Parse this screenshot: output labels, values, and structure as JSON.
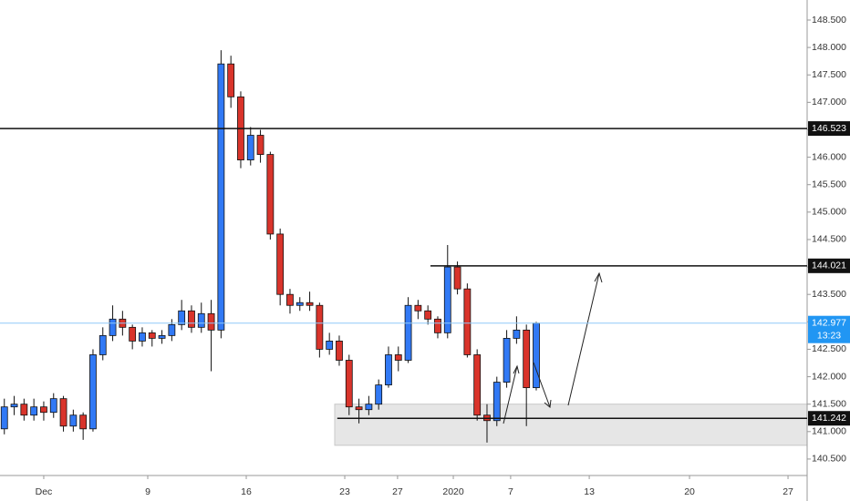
{
  "chart_data": {
    "type": "candlestick",
    "up_color": "#3179f5",
    "down_color": "#d9342b",
    "x": [
      -2,
      -1.5,
      -1,
      -0.5,
      0,
      0.5,
      1,
      1.5,
      2,
      2.5,
      3,
      3.5,
      4,
      4.5,
      5,
      5.5,
      6,
      6.5,
      7,
      7.5,
      8,
      8.5,
      9,
      9.5,
      10,
      10.5,
      11,
      11.5,
      12,
      12.5,
      13,
      13.5,
      14,
      14.5,
      15,
      15.5,
      16,
      16.5,
      17,
      17.5,
      18,
      18.5,
      19,
      19.5,
      20,
      20.5,
      21,
      21.5,
      22,
      22.5,
      23,
      23.5,
      24,
      24.5,
      25
    ],
    "open": [
      141.05,
      141.45,
      141.5,
      141.3,
      141.45,
      141.35,
      141.6,
      141.1,
      141.3,
      141.05,
      142.4,
      142.75,
      143.05,
      142.9,
      142.65,
      142.8,
      142.7,
      142.75,
      142.95,
      143.2,
      142.9,
      143.15,
      142.85,
      147.7,
      147.1,
      145.95,
      146.4,
      146.05,
      144.6,
      143.5,
      143.3,
      143.35,
      143.3,
      142.5,
      142.65,
      142.3,
      141.45,
      141.4,
      141.5,
      141.85,
      142.4,
      142.3,
      143.3,
      143.2,
      143.05,
      142.8,
      144.0,
      143.6,
      142.4,
      141.3,
      141.2,
      141.9,
      142.7,
      142.85,
      141.8
    ],
    "high": [
      141.6,
      141.65,
      141.6,
      141.6,
      141.55,
      141.7,
      141.65,
      141.4,
      141.35,
      142.5,
      142.9,
      143.3,
      143.2,
      142.95,
      142.9,
      142.85,
      142.85,
      143.05,
      143.4,
      143.3,
      143.35,
      143.4,
      147.95,
      147.85,
      147.2,
      146.55,
      146.5,
      146.1,
      144.7,
      143.6,
      143.45,
      143.55,
      143.35,
      142.8,
      142.75,
      142.4,
      141.6,
      141.65,
      141.95,
      142.55,
      142.55,
      143.45,
      143.4,
      143.3,
      143.1,
      144.4,
      144.1,
      143.7,
      142.5,
      141.5,
      142.0,
      142.85,
      143.1,
      142.95,
      143.0
    ],
    "low": [
      140.95,
      141.3,
      141.2,
      141.2,
      141.2,
      141.25,
      141.0,
      141.0,
      140.85,
      141.0,
      142.3,
      142.65,
      142.75,
      142.5,
      142.55,
      142.55,
      142.6,
      142.65,
      142.85,
      142.8,
      142.8,
      142.1,
      142.7,
      146.9,
      145.8,
      145.85,
      145.9,
      144.5,
      143.3,
      143.15,
      143.2,
      143.2,
      142.35,
      142.4,
      142.2,
      141.3,
      141.15,
      141.3,
      141.4,
      141.8,
      142.1,
      142.25,
      143.05,
      142.95,
      142.7,
      142.7,
      143.5,
      142.35,
      141.2,
      140.8,
      141.1,
      141.8,
      142.6,
      141.1,
      141.75
    ],
    "close": [
      141.45,
      141.5,
      141.3,
      141.45,
      141.35,
      141.6,
      141.1,
      141.3,
      141.05,
      142.4,
      142.75,
      143.05,
      142.9,
      142.65,
      142.8,
      142.7,
      142.75,
      142.95,
      143.2,
      142.9,
      143.15,
      142.85,
      147.7,
      147.1,
      145.95,
      146.4,
      146.05,
      144.6,
      143.5,
      143.3,
      143.35,
      143.3,
      142.5,
      142.65,
      142.3,
      141.45,
      141.4,
      141.5,
      141.85,
      142.4,
      142.3,
      143.3,
      143.2,
      143.05,
      142.8,
      144.0,
      143.6,
      142.4,
      141.3,
      141.2,
      141.9,
      142.7,
      142.85,
      141.8,
      142.977
    ],
    "xlim": [
      -2.22,
      38.75
    ],
    "ylim": [
      140.2,
      148.865
    ],
    "xticks": [
      {
        "value": 0,
        "label": "Dec"
      },
      {
        "value": 5.28,
        "label": "9"
      },
      {
        "value": 10.28,
        "label": "16"
      },
      {
        "value": 15.28,
        "label": "23"
      },
      {
        "value": 17.96,
        "label": "27"
      },
      {
        "value": 20.79,
        "label": "2020"
      },
      {
        "value": 23.7,
        "label": "7"
      },
      {
        "value": 27.69,
        "label": "13"
      },
      {
        "value": 32.78,
        "label": "20"
      },
      {
        "value": 37.78,
        "label": "27"
      }
    ],
    "yticks": [
      {
        "value": 140.5,
        "label": "140.500"
      },
      {
        "value": 141,
        "label": "141.000"
      },
      {
        "value": 141.5,
        "label": "141.500"
      },
      {
        "value": 142,
        "label": "142.000"
      },
      {
        "value": 142.5,
        "label": "142.500"
      },
      {
        "value": 143,
        "label": "143.000"
      },
      {
        "value": 143.5,
        "label": "143.500"
      },
      {
        "value": 144,
        "label": "144.000"
      },
      {
        "value": 144.5,
        "label": "144.500"
      },
      {
        "value": 145,
        "label": "145.000"
      },
      {
        "value": 145.5,
        "label": "145.500"
      },
      {
        "value": 146,
        "label": "146.000"
      },
      {
        "value": 146.5,
        "label": "146.500"
      },
      {
        "value": 147,
        "label": "147.000"
      },
      {
        "value": 147.5,
        "label": "147.500"
      },
      {
        "value": 148,
        "label": "148.000"
      },
      {
        "value": 148.5,
        "label": "148.500"
      }
    ],
    "levels": [
      {
        "value": 146.523,
        "x_from": -2.22
      },
      {
        "value": 144.021,
        "x_from": 19.63
      },
      {
        "value": 141.242,
        "x_from": 14.9
      }
    ],
    "zone": {
      "low": 140.75,
      "high": 141.5,
      "x_from": 14.77
    },
    "last_price": 142.977,
    "countdown": "13:23"
  }
}
